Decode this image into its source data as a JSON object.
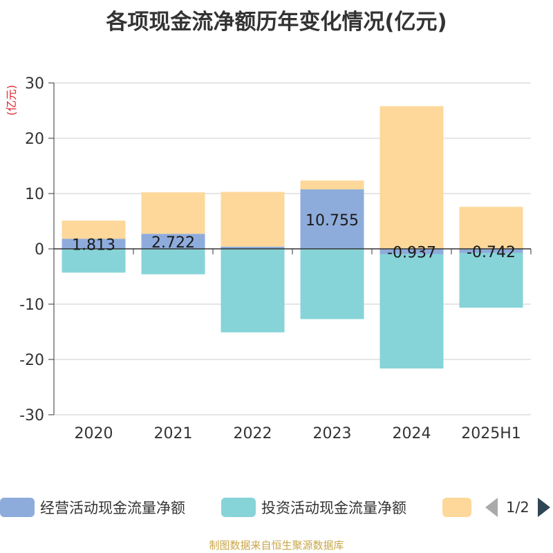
{
  "title": "各项现金流净额历年变化情况(亿元)",
  "source": "制图数据来自恒生聚源数据库",
  "legend_page": "1/2",
  "chart_data": {
    "type": "bar",
    "stacked": true,
    "categories": [
      "2020",
      "2021",
      "2022",
      "2023",
      "2024",
      "2025H1"
    ],
    "ylabel": "(亿元)",
    "ylim": [
      -30,
      30
    ],
    "yticks": [
      30,
      20,
      10,
      0,
      -10,
      -20,
      -30
    ],
    "grid": true,
    "legend_position": "bottom",
    "series": [
      {
        "name": "经营活动现金流量净额",
        "color": "#8eacdb",
        "values": [
          1.813,
          2.722,
          0.4,
          10.755,
          -0.937,
          -0.742
        ],
        "labels": [
          "1.813",
          "2.722",
          "",
          "10.755",
          "-0.937",
          "-0.742"
        ]
      },
      {
        "name": "投资活动现金流量净额",
        "color": "#86d4d8",
        "values": [
          -4.3,
          -4.6,
          -15.1,
          -12.7,
          -20.7,
          -9.9
        ]
      },
      {
        "name": "",
        "color": "#fdd89a",
        "values": [
          3.3,
          7.5,
          9.9,
          1.6,
          25.8,
          7.6
        ]
      }
    ]
  }
}
